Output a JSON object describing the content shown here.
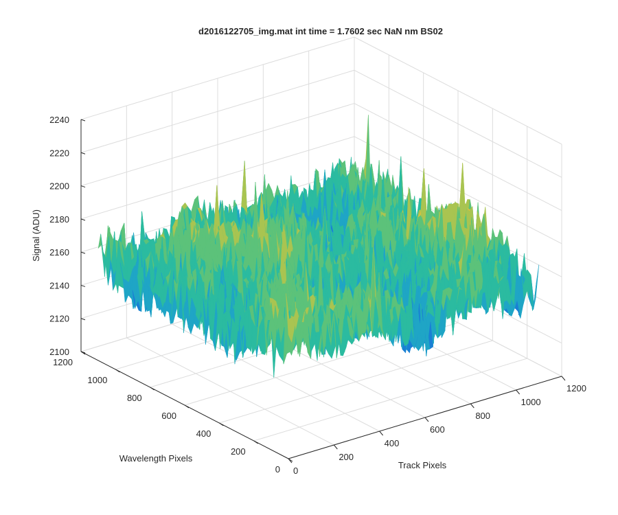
{
  "chart_data": {
    "type": "surface",
    "title": "d2016122705_img.mat int time = 1.7602 sec  NaN nm BS02",
    "xlabel": "Track Pixels",
    "ylabel": "Wavelength Pixels",
    "zlabel": "Signal (ADU)",
    "xlim": [
      0,
      1200
    ],
    "ylim": [
      0,
      1200
    ],
    "zlim": [
      2100,
      2240
    ],
    "x_ticks": [
      "0",
      "200",
      "400",
      "600",
      "800",
      "1000",
      "1200"
    ],
    "y_ticks": [
      "0",
      "200",
      "400",
      "600",
      "800",
      "1000",
      "1200"
    ],
    "z_ticks": [
      "2100",
      "2120",
      "2140",
      "2160",
      "2180",
      "2200",
      "2220",
      "2240"
    ],
    "grid": true,
    "surface": {
      "x_range": [
        0,
        1100
      ],
      "y_range": [
        0,
        1100
      ],
      "z_mean": 2162,
      "z_min": 2110,
      "z_max": 2215,
      "colormap": [
        "#0d47c9",
        "#1a7fd4",
        "#1fa5c6",
        "#2bbba0",
        "#5cc27a",
        "#a9c451",
        "#e3c13a"
      ]
    }
  }
}
